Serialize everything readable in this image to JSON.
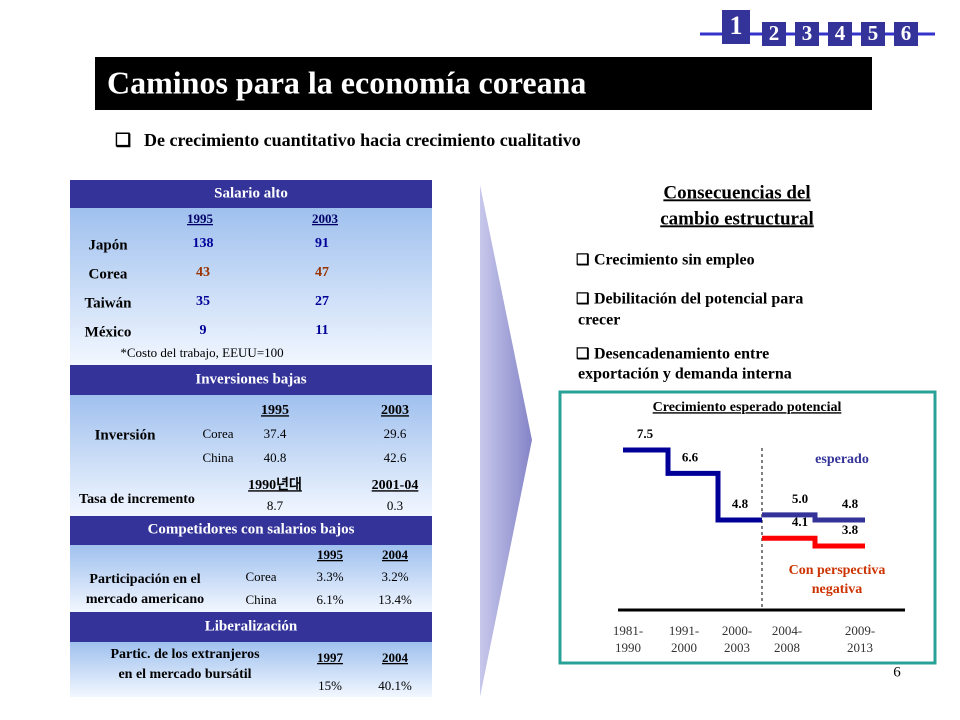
{
  "nav": {
    "current": "1",
    "pages": [
      "2",
      "3",
      "4",
      "5",
      "6"
    ]
  },
  "title": "Caminos para la economía coreana",
  "subtitle": "De crecimiento cuantitativo hacia crecimiento cualitativo",
  "left": {
    "salario": {
      "header": "Salario alto",
      "years": [
        "1995",
        "2003"
      ],
      "rows": [
        [
          "Japón",
          "138",
          "91"
        ],
        [
          "Corea",
          "43",
          "47"
        ],
        [
          "Taiwán",
          "35",
          "27"
        ],
        [
          "México",
          "9",
          "11"
        ]
      ],
      "note": "*Costo del trabajo, EEUU=100"
    },
    "inversiones": {
      "header": "Inversiones bajas",
      "label": "Inversión",
      "years": [
        "1995",
        "2003"
      ],
      "rows": [
        [
          "Corea",
          "37.4",
          "29.6"
        ],
        [
          "China",
          "40.8",
          "42.6"
        ]
      ],
      "tasa": {
        "label": "Tasa de incremento",
        "periods": [
          "1990년대",
          "2001-04"
        ],
        "values": [
          "8.7",
          "0.3"
        ]
      }
    },
    "competidores": {
      "header": "Competidores con salarios bajos",
      "label": [
        "Participación en el",
        "mercado americano"
      ],
      "years": [
        "1995",
        "2004"
      ],
      "rows": [
        [
          "Corea",
          "3.3%",
          "3.2%"
        ],
        [
          "China",
          "6.1%",
          "13.4%"
        ]
      ]
    },
    "liberalizacion": {
      "header": "Liberalización",
      "label": [
        "Partic. de los extranjeros",
        "en el mercado bursátil"
      ],
      "years": [
        "1997",
        "2004"
      ],
      "values": [
        "15%",
        "40.1%"
      ]
    }
  },
  "right": {
    "heading": [
      "Consecuencias del",
      "cambio estructural"
    ],
    "bullets": [
      [
        "Crecimiento sin empleo"
      ],
      [
        "Debilitación del potencial para",
        "crecer"
      ],
      [
        "Desencadenamiento entre",
        "exportación y demanda interna"
      ]
    ]
  },
  "chart": {
    "type": "step",
    "title": "Crecimiento esperado potencial",
    "periods": [
      [
        "1981-",
        "1990"
      ],
      [
        "1991-",
        "2000"
      ],
      [
        "2000-",
        "2003"
      ],
      [
        "2004-",
        "2008"
      ],
      [
        "2009-",
        "2013"
      ]
    ],
    "series": [
      {
        "color": "#000099",
        "values": [
          7.5,
          6.6,
          4.8,
          null,
          null
        ],
        "value_labels": [
          "7.5",
          "6.6",
          "4.8",
          null,
          null
        ]
      },
      {
        "name": "esperado",
        "color": "#333399",
        "values": [
          null,
          null,
          null,
          5.0,
          4.8
        ],
        "value_labels": [
          null,
          null,
          null,
          "5.0",
          "4.8"
        ]
      },
      {
        "name": "Con perspectiva negativa",
        "color": "#ff0000",
        "values": [
          null,
          null,
          null,
          4.1,
          3.8
        ],
        "value_labels": [
          null,
          null,
          null,
          "4.1",
          "3.8"
        ]
      }
    ]
  },
  "page_number": "6"
}
